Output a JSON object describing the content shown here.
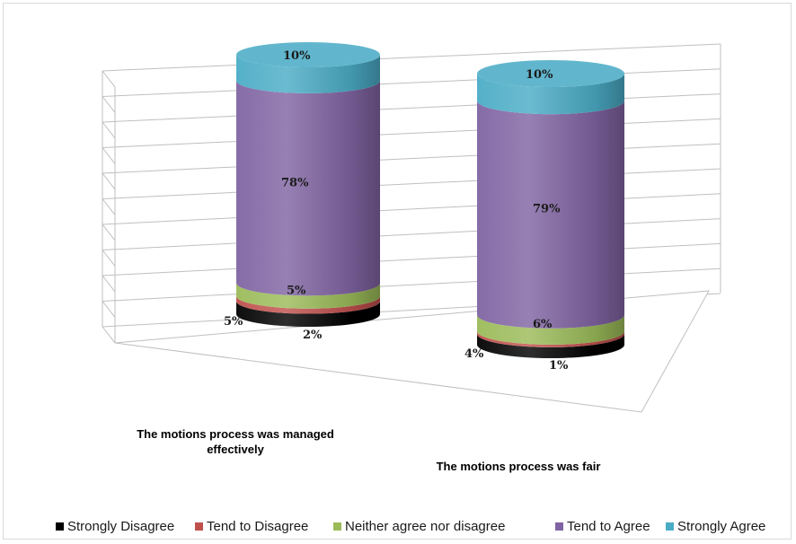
{
  "chart_data": {
    "type": "bar",
    "stacked": true,
    "shape": "cylinder",
    "value_unit": "%",
    "categories": [
      "The motions process was managed effectively",
      "The motions process was fair"
    ],
    "series": [
      {
        "name": "Strongly Disagree",
        "values": [
          5,
          4
        ],
        "color": "#000000"
      },
      {
        "name": "Tend to Disagree",
        "values": [
          2,
          1
        ],
        "color": "#c0504d"
      },
      {
        "name": "Neither agree nor disagree",
        "values": [
          5,
          6
        ],
        "color": "#9bbb59"
      },
      {
        "name": "Tend to Agree",
        "values": [
          78,
          79
        ],
        "color": "#8064a2"
      },
      {
        "name": "Strongly Agree",
        "values": [
          10,
          10
        ],
        "color": "#4bacc6"
      }
    ],
    "ylim": [
      0,
      100
    ],
    "grid": true,
    "legend_position": "bottom"
  }
}
